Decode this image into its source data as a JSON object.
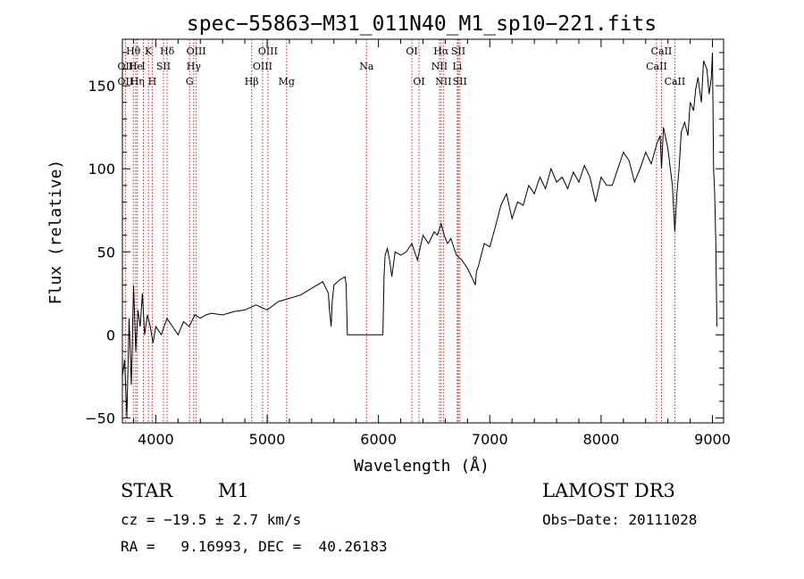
{
  "chart_data": {
    "type": "line",
    "title": "spec−55863−M31_011N40_M1_sp10−221.fits",
    "xlabel": "Wavelength (Å)",
    "ylabel": "Flux (relative)",
    "xlim": [
      3700,
      9100
    ],
    "ylim": [
      -53,
      178
    ],
    "x_ticks": [
      4000,
      5000,
      6000,
      7000,
      8000,
      9000
    ],
    "y_ticks": [
      -50,
      0,
      50,
      100,
      150
    ],
    "x_minor_step": 200,
    "y_minor_step": 10,
    "line_color": "#000000",
    "marker_color": "#c02020",
    "series": [
      {
        "name": "spectrum",
        "x": [
          3700,
          3720,
          3740,
          3760,
          3780,
          3800,
          3820,
          3840,
          3860,
          3880,
          3900,
          3925,
          3950,
          3975,
          4000,
          4050,
          4100,
          4150,
          4200,
          4250,
          4300,
          4350,
          4400,
          4450,
          4500,
          4600,
          4700,
          4800,
          4900,
          5000,
          5100,
          5200,
          5300,
          5400,
          5500,
          5550,
          5560,
          5575,
          5585,
          5600,
          5650,
          5700,
          5710,
          5720,
          5730,
          6030,
          6040,
          6050,
          6060,
          6080,
          6100,
          6120,
          6150,
          6200,
          6250,
          6300,
          6350,
          6400,
          6450,
          6500,
          6530,
          6563,
          6590,
          6620,
          6650,
          6700,
          6750,
          6800,
          6850,
          6870,
          6880,
          6900,
          6950,
          7000,
          7050,
          7100,
          7150,
          7200,
          7250,
          7300,
          7350,
          7400,
          7450,
          7500,
          7550,
          7600,
          7650,
          7700,
          7750,
          7800,
          7850,
          7900,
          7950,
          8000,
          8050,
          8100,
          8150,
          8200,
          8250,
          8300,
          8350,
          8400,
          8450,
          8500,
          8530,
          8542,
          8560,
          8600,
          8640,
          8662,
          8680,
          8700,
          8720,
          8750,
          8780,
          8800,
          8830,
          8850,
          8870,
          8900,
          8920,
          8950,
          8970,
          8990,
          9000,
          9010,
          9020,
          9030,
          9040
        ],
        "y": [
          -25,
          -15,
          -50,
          10,
          -30,
          30,
          -10,
          15,
          5,
          25,
          0,
          12,
          5,
          -5,
          5,
          0,
          10,
          5,
          0,
          8,
          5,
          12,
          10,
          12,
          13,
          12,
          14,
          15,
          18,
          15,
          20,
          22,
          24,
          28,
          32,
          25,
          15,
          5,
          20,
          30,
          33,
          35,
          30,
          0,
          0,
          0,
          0,
          35,
          48,
          52,
          45,
          35,
          50,
          48,
          50,
          55,
          45,
          60,
          55,
          62,
          60,
          67,
          60,
          55,
          58,
          48,
          45,
          40,
          33,
          30,
          38,
          42,
          55,
          53,
          65,
          78,
          85,
          70,
          80,
          78,
          90,
          85,
          95,
          88,
          100,
          92,
          95,
          88,
          98,
          92,
          102,
          95,
          80,
          95,
          90,
          90,
          100,
          110,
          105,
          92,
          100,
          110,
          103,
          115,
          120,
          100,
          125,
          112,
          90,
          62,
          85,
          100,
          122,
          128,
          120,
          140,
          135,
          148,
          155,
          140,
          165,
          160,
          145,
          155,
          170,
          100,
          85,
          55,
          5
        ]
      }
    ],
    "line_markers": [
      {
        "label": "Hθ",
        "x": 3798,
        "row": 1
      },
      {
        "label": "K",
        "x": 3934,
        "row": 1
      },
      {
        "label": "Hδ",
        "x": 4102,
        "row": 1
      },
      {
        "label": "OIII",
        "x": 4363,
        "row": 1
      },
      {
        "label": "OIII",
        "x": 5007,
        "row": 1
      },
      {
        "label": "OI",
        "x": 6300,
        "row": 1
      },
      {
        "label": "Hα",
        "x": 6563,
        "row": 1
      },
      {
        "label": "SII",
        "x": 6717,
        "row": 1
      },
      {
        "label": "CaII",
        "x": 8542,
        "row": 1
      },
      {
        "label": "OII",
        "x": 3727,
        "row": 2
      },
      {
        "label": "He",
        "x": 3820,
        "row": 2
      },
      {
        "label": "I",
        "x": 3889,
        "row": 2
      },
      {
        "label": "SII",
        "x": 4069,
        "row": 2
      },
      {
        "label": "Hγ",
        "x": 4341,
        "row": 2
      },
      {
        "label": "OIII",
        "x": 4959,
        "row": 2
      },
      {
        "label": "Na",
        "x": 5893,
        "row": 2
      },
      {
        "label": "NII",
        "x": 6548,
        "row": 2
      },
      {
        "label": "Li",
        "x": 6708,
        "row": 2
      },
      {
        "label": "CaII",
        "x": 8498,
        "row": 2
      },
      {
        "label": "OII",
        "x": 3727,
        "row": 3
      },
      {
        "label": "Hη",
        "x": 3835,
        "row": 3
      },
      {
        "label": "H",
        "x": 3968,
        "row": 3
      },
      {
        "label": "G",
        "x": 4304,
        "row": 3
      },
      {
        "label": "Hβ",
        "x": 4861,
        "row": 3
      },
      {
        "label": "Mg",
        "x": 5175,
        "row": 3
      },
      {
        "label": "OI",
        "x": 6364,
        "row": 3
      },
      {
        "label": "NII",
        "x": 6583,
        "row": 3
      },
      {
        "label": "SII",
        "x": 6731,
        "row": 3
      },
      {
        "label": "CaII",
        "x": 8662,
        "row": 3
      }
    ]
  },
  "info": {
    "object_type": "STAR",
    "target": "M1",
    "survey": "LAMOST DR3",
    "cz": "cz = −19.5 ± 2.7 km/s",
    "obs_date": "Obs−Date: 20111028",
    "coords": "RA =   9.16993, DEC =  40.26183"
  }
}
